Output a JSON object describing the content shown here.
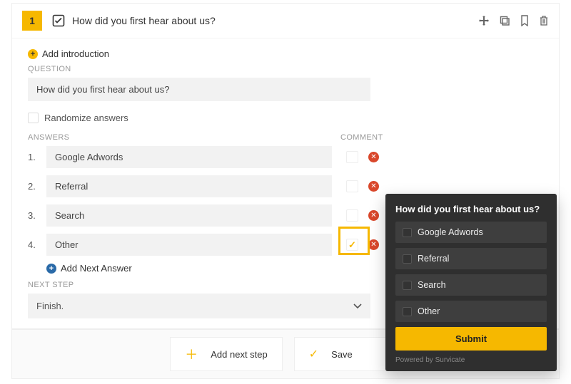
{
  "colors": {
    "accent": "#f6b800",
    "danger": "#d9472b",
    "dark_panel": "#2f2f2f",
    "option_bg": "#3e3e3e",
    "input_bg": "#f2f2f2",
    "border": "#eeeeee",
    "text_muted": "#999999"
  },
  "header": {
    "number": "1",
    "title": "How did you first hear about us?"
  },
  "body": {
    "add_intro": "Add introduction",
    "question_label": "QUESTION",
    "question_value": "How did you first hear about us?",
    "randomize_label": "Randomize answers",
    "randomize_checked": false,
    "answers_label": "ANSWERS",
    "comment_label": "COMMENT",
    "answers": [
      {
        "num": "1.",
        "text": "Google Adwords",
        "comment_checked": false,
        "highlighted": false
      },
      {
        "num": "2.",
        "text": "Referral",
        "comment_checked": false,
        "highlighted": false
      },
      {
        "num": "3.",
        "text": "Search",
        "comment_checked": false,
        "highlighted": false
      },
      {
        "num": "4.",
        "text": "Other",
        "comment_checked": true,
        "highlighted": true
      }
    ],
    "add_next_answer": "Add Next Answer",
    "next_step_label": "NEXT STEP",
    "next_step_value": "Finish."
  },
  "footer": {
    "add_next_step": "Add next step",
    "save": "Save"
  },
  "preview": {
    "title": "How did you first hear about us?",
    "options": [
      "Google Adwords",
      "Referral",
      "Search",
      "Other"
    ],
    "submit": "Submit",
    "powered_by": "Powered by Survicate"
  }
}
